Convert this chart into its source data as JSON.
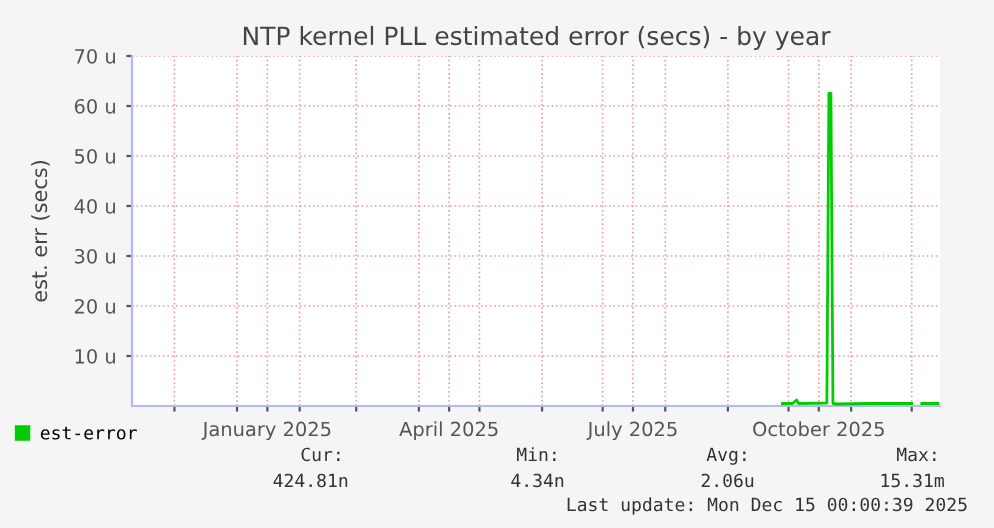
{
  "chart_data": {
    "type": "line",
    "title": "NTP kernel PLL estimated error (secs) - by year",
    "ylabel": "est. err (secs)",
    "x": [
      "2025-09-28",
      "2025-10-03",
      "2025-10-05",
      "2025-10-06",
      "2025-10-20",
      "2025-10-21",
      "2025-10-22",
      "2025-10-23",
      "2025-10-25",
      "2025-11-10",
      "2025-12-01",
      "2025-12-04",
      "2025-12-06",
      "2025-12-14"
    ],
    "series": [
      {
        "name": "est-error",
        "color": "#00cc00",
        "values": [
          0.5,
          0.5,
          1.2,
          0.5,
          0.6,
          62.5,
          62.5,
          0.5,
          0.4,
          0.5,
          0.5,
          null,
          0.5,
          0.5
        ]
      }
    ],
    "xlim": [
      "2024-11-10",
      "2025-12-15"
    ],
    "xticks": [
      {
        "value": "2024-12-01",
        "label": null
      },
      {
        "value": "2025-01-01",
        "label": null
      },
      {
        "value": "2025-01-16",
        "label": "January 2025"
      },
      {
        "value": "2025-02-01",
        "label": null
      },
      {
        "value": "2025-03-01",
        "label": null
      },
      {
        "value": "2025-04-01",
        "label": null
      },
      {
        "value": "2025-04-16",
        "label": "April 2025"
      },
      {
        "value": "2025-05-01",
        "label": null
      },
      {
        "value": "2025-06-01",
        "label": null
      },
      {
        "value": "2025-07-01",
        "label": null
      },
      {
        "value": "2025-07-16",
        "label": "July 2025"
      },
      {
        "value": "2025-08-01",
        "label": null
      },
      {
        "value": "2025-09-01",
        "label": null
      },
      {
        "value": "2025-10-01",
        "label": null
      },
      {
        "value": "2025-10-16",
        "label": "October 2025"
      },
      {
        "value": "2025-11-01",
        "label": null
      },
      {
        "value": "2025-12-01",
        "label": null
      }
    ],
    "ylim": [
      0,
      70
    ],
    "yticks": [
      {
        "value": 10,
        "label": "10 u"
      },
      {
        "value": 20,
        "label": "20 u"
      },
      {
        "value": 30,
        "label": "30 u"
      },
      {
        "value": 40,
        "label": "40 u"
      },
      {
        "value": 50,
        "label": "50 u"
      },
      {
        "value": 60,
        "label": "60 u"
      },
      {
        "value": 70,
        "label": "70 u"
      }
    ],
    "grid": true,
    "legend": "bottom left",
    "line_style": "solid",
    "marker": "none",
    "annotations": [
      "Cur:",
      "424.81n",
      "Min:",
      "4.34n",
      "Avg:",
      "2.06u",
      "Max:",
      "15.31m",
      "Last update: Mon Dec 15 00:00:39 2025"
    ]
  }
}
